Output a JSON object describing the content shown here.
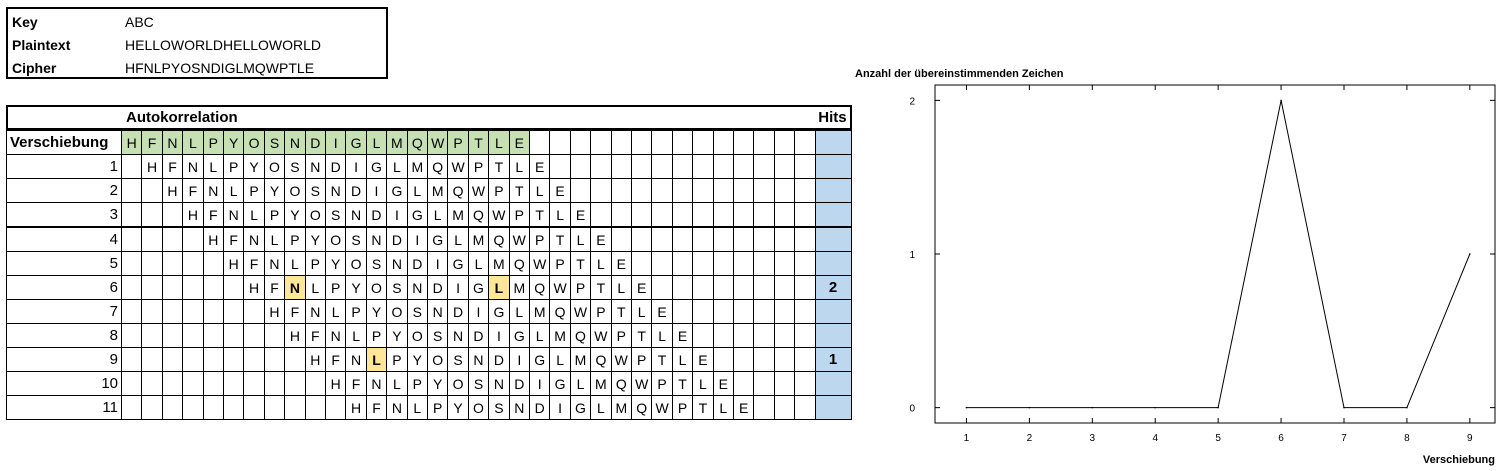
{
  "keybox": {
    "rows": [
      {
        "label": "Key",
        "value": "ABC"
      },
      {
        "label": "Plaintext",
        "value": "HELLOWORLDHELLOWORLD"
      },
      {
        "label": "Cipher",
        "value": "HFNLPYOSNDIGLMQWPTLE"
      }
    ]
  },
  "table": {
    "title": "Autokorrelation",
    "hits_header": "Hits",
    "shift_header": "Verschiebung",
    "cipher_letters": [
      "H",
      "F",
      "N",
      "L",
      "P",
      "Y",
      "O",
      "S",
      "N",
      "D",
      "I",
      "G",
      "L",
      "M",
      "Q",
      "W",
      "P",
      "T",
      "L",
      "E"
    ],
    "rows": [
      {
        "shift": "1",
        "hits": ""
      },
      {
        "shift": "2",
        "hits": ""
      },
      {
        "shift": "3",
        "hits": ""
      },
      {
        "shift": "4",
        "hits": ""
      },
      {
        "shift": "5",
        "hits": ""
      },
      {
        "shift": "6",
        "hits": "2"
      },
      {
        "shift": "7",
        "hits": ""
      },
      {
        "shift": "8",
        "hits": ""
      },
      {
        "shift": "9",
        "hits": "1"
      },
      {
        "shift": "10",
        "hits": ""
      },
      {
        "shift": "11",
        "hits": ""
      }
    ],
    "highlight_color": "#ffe699",
    "header_color": "#c6e0b4",
    "hits_color": "#bdd7ee"
  },
  "chart_data": {
    "type": "line",
    "title": "Anzahl der übereinstimmenden Zeichen",
    "xlabel": "Verschiebung",
    "ylabel": "",
    "x": [
      1,
      2,
      3,
      4,
      5,
      6,
      7,
      8,
      9
    ],
    "values": [
      0,
      0,
      0,
      0,
      0,
      2,
      0,
      0,
      1
    ],
    "xlim": [
      0.5,
      9.4
    ],
    "ylim": [
      -0.1,
      2.1
    ],
    "x_ticks": [
      "1",
      "2",
      "3",
      "4",
      "5",
      "6",
      "7",
      "8",
      "9"
    ],
    "y_ticks": [
      "0",
      "1",
      "2"
    ],
    "grid": false,
    "legend": "none"
  }
}
